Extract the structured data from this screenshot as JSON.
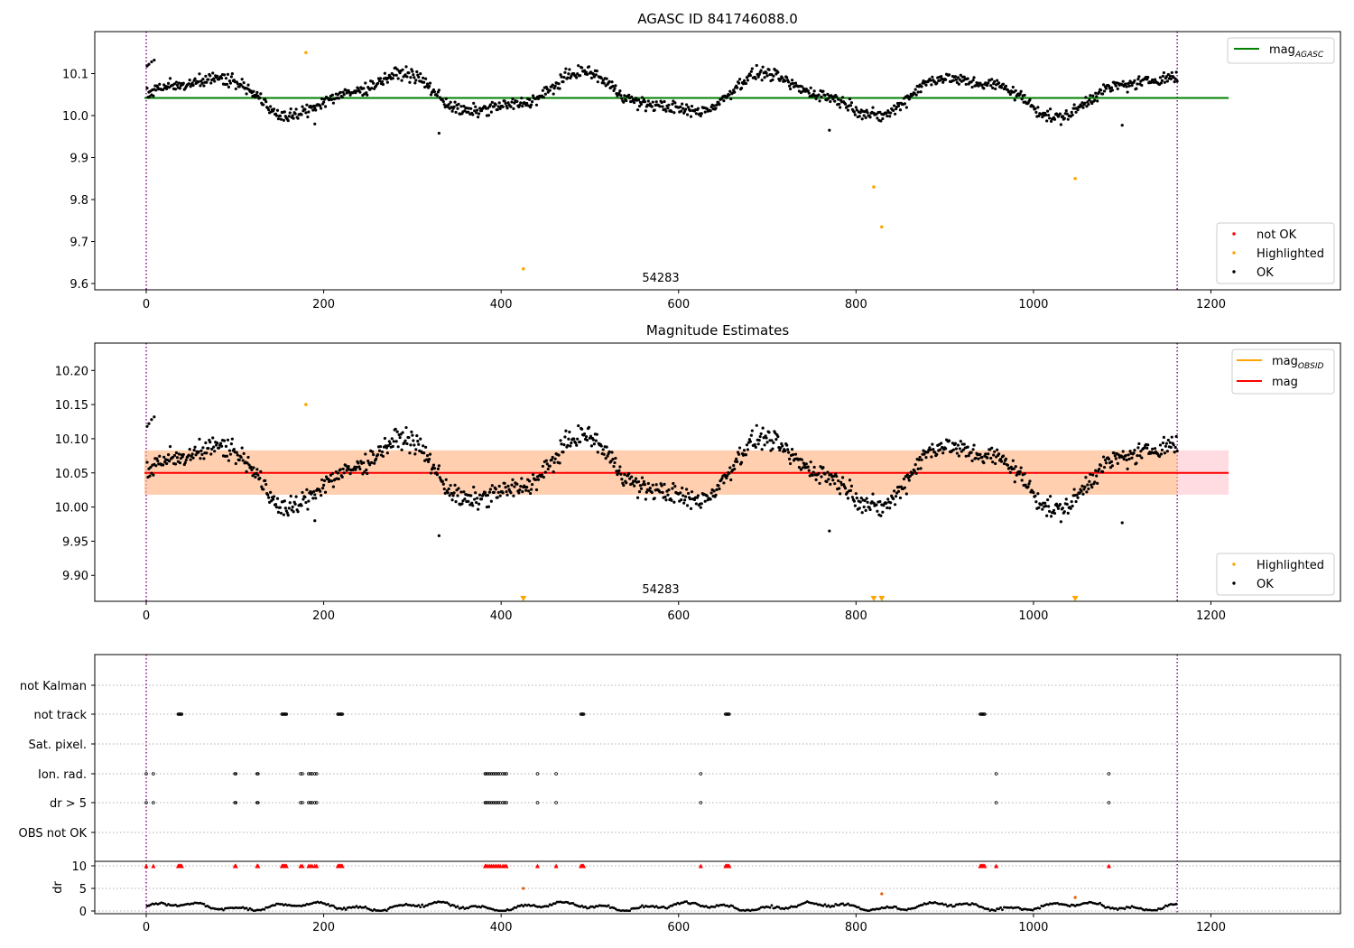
{
  "chart_data": [
    {
      "type": "scatter",
      "title": "AGASC ID 841746088.0",
      "xlim": [
        -58,
        1346
      ],
      "ylim": [
        9.585,
        10.2
      ],
      "xticks": [
        0,
        200,
        400,
        600,
        800,
        1000,
        1200
      ],
      "yticks": [
        9.6,
        9.7,
        9.8,
        9.9,
        10.0,
        10.1
      ],
      "ytick_labels": [
        "9.6",
        "9.7",
        "9.8",
        "9.9",
        "10.0",
        "10.1"
      ],
      "annotation": {
        "text": "54283",
        "x": 580
      },
      "vlines": [
        0,
        1162
      ],
      "hline": {
        "name": "mag_AGASC",
        "y": 10.042,
        "color": "#008000",
        "x_end": 1220
      },
      "highlighted": {
        "x": [
          180,
          425,
          820,
          829,
          1047
        ],
        "y": [
          10.15,
          9.635,
          9.83,
          9.735,
          9.85
        ]
      },
      "legend_lines": [
        {
          "name": "mag",
          "sub": "AGASC",
          "color": "#008000"
        }
      ],
      "legend_points": [
        {
          "name": "not OK",
          "color": "#ff0000"
        },
        {
          "name": "Highlighted",
          "color": "#ffa500"
        },
        {
          "name": "OK",
          "color": "#000000"
        }
      ]
    },
    {
      "type": "scatter",
      "title": "Magnitude Estimates",
      "xlim": [
        -58,
        1346
      ],
      "ylim": [
        9.862,
        10.24
      ],
      "xticks": [
        0,
        200,
        400,
        600,
        800,
        1000,
        1200
      ],
      "yticks": [
        9.9,
        9.95,
        10.0,
        10.05,
        10.1,
        10.15,
        10.2
      ],
      "ytick_labels": [
        "9.90",
        "9.95",
        "10.00",
        "10.05",
        "10.10",
        "10.15",
        "10.20"
      ],
      "annotation": {
        "text": "54283",
        "x": 580
      },
      "vlines": [
        0,
        1162
      ],
      "mag": {
        "name": "mag",
        "y": 10.05,
        "color": "#ff0000",
        "band": [
          10.018,
          10.083
        ],
        "x_end": 1220
      },
      "mag_obsid": {
        "name": "mag_OBSID",
        "y": 10.05,
        "color": "#ffa500",
        "band": [
          10.018,
          10.083
        ],
        "x_end": 1162
      },
      "highlighted": {
        "x": [
          180
        ],
        "y": [
          10.15
        ]
      },
      "out_of_range_markers": {
        "x": [
          425,
          820,
          829,
          1047
        ],
        "color": "#ffa500"
      },
      "legend_lines": [
        {
          "name": "mag",
          "sub": "OBSID",
          "color": "#ffa500"
        },
        {
          "name": "mag",
          "sub": "",
          "color": "#ff0000"
        }
      ],
      "legend_points": [
        {
          "name": "Highlighted",
          "color": "#ffa500"
        },
        {
          "name": "OK",
          "color": "#000000"
        }
      ]
    },
    {
      "type": "scatter",
      "xlim": [
        -58,
        1346
      ],
      "vlines": [
        0,
        1162
      ],
      "flag_labels": [
        "not Kalman",
        "not track",
        "Sat. pixel.",
        "Ion. rad.",
        "dr > 5",
        "OBS not OK"
      ],
      "flags": {
        "not track": [
          36,
          37,
          38,
          39,
          40,
          153,
          154,
          155,
          156,
          157,
          158,
          216,
          217,
          218,
          219,
          220,
          221,
          490,
          491,
          492,
          493,
          653,
          654,
          655,
          656,
          657,
          940,
          941,
          942,
          943,
          944,
          945
        ],
        "Ion. rad.": [
          0,
          8,
          100,
          101,
          125,
          126,
          174,
          176,
          183,
          185,
          187,
          190,
          192,
          382,
          383,
          385,
          387,
          389,
          391,
          393,
          395,
          397,
          399,
          402,
          404,
          406,
          441,
          462,
          625,
          958,
          1085
        ],
        "dr > 5": [
          0,
          8,
          100,
          101,
          125,
          126,
          174,
          176,
          183,
          185,
          187,
          190,
          192,
          382,
          383,
          385,
          387,
          389,
          391,
          393,
          395,
          397,
          399,
          402,
          404,
          406,
          441,
          462,
          625,
          958,
          1085
        ]
      },
      "dr": {
        "ylabel": "dr",
        "yticks": [
          0,
          5,
          10
        ],
        "ylim": [
          -0.6,
          11
        ],
        "highlighted": {
          "x": [
            425,
            829,
            1047
          ],
          "y": [
            5,
            3.8,
            3
          ]
        }
      }
    }
  ]
}
